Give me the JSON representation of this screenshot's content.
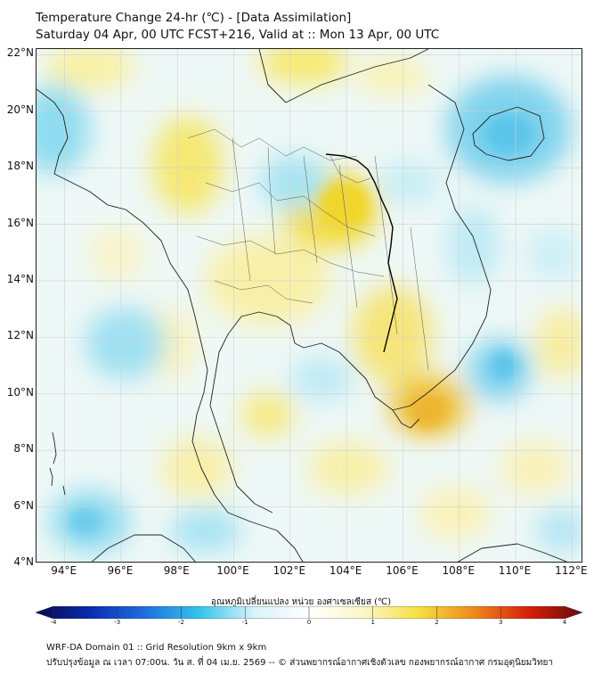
{
  "header": {
    "title": "Temperature Change 24-hr (℃) - [Data Assimilation]",
    "subtitle": "Saturday 04 Apr, 00 UTC FCST+216, Valid at :: Mon 13 Apr, 00 UTC"
  },
  "axes": {
    "lat_labels": [
      "22°N",
      "20°N",
      "18°N",
      "16°N",
      "14°N",
      "12°N",
      "10°N",
      "8°N",
      "6°N",
      "4°N"
    ],
    "lon_labels": [
      "94°E",
      "96°E",
      "98°E",
      "100°E",
      "102°E",
      "104°E",
      "106°E",
      "108°E",
      "110°E",
      "112°E"
    ],
    "lat_range": [
      4,
      22.2
    ],
    "lon_range": [
      93,
      112.4
    ]
  },
  "colorbar": {
    "title": "อุณหภูมิเปลี่ยนแปลง หน่วย องศาเซลเซียส (℃)",
    "ticks": [
      "-4",
      "-3",
      "-2",
      "-1",
      "0",
      "1",
      "2",
      "3",
      "4"
    ],
    "range": [
      -4,
      4
    ],
    "colors": [
      "#08084a",
      "#0a2cb0",
      "#1e6fe0",
      "#35c4ec",
      "#d8f3fb",
      "#ffffff",
      "#fbf7c8",
      "#f6e040",
      "#f08a1c",
      "#d8200a",
      "#6a0a0a"
    ]
  },
  "footer": {
    "line1": "WRF-DA Domain 01 :: Grid Resolution 9km x 9km",
    "line2": "ปรับปรุงข้อมูล ณ เวลา 07:00น. วัน ส. ที่ 04 เม.ย. 2569 -- © ส่วนพยากรณ์อากาศเชิงตัวเลข กองพยากรณ์อากาศ กรมอุตุนิยมวิทยา"
  }
}
